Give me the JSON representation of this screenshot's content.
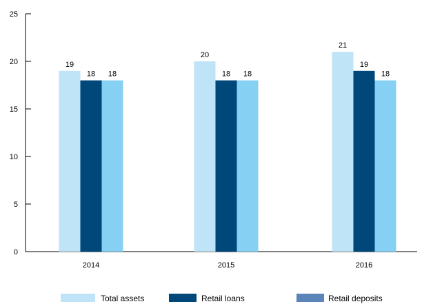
{
  "chart_data": {
    "type": "bar",
    "categories": [
      "2014",
      "2015",
      "2016"
    ],
    "series": [
      {
        "name": "Total assets",
        "values": [
          19,
          20,
          21
        ],
        "color": "#bfe3f7"
      },
      {
        "name": "Retail loans",
        "values": [
          18,
          18,
          19
        ],
        "color": "#00477a"
      },
      {
        "name": "Retail deposits",
        "values": [
          18,
          18,
          18
        ],
        "color": "#85d0f3",
        "legend_color": "#5b85b8"
      }
    ],
    "data_labels": [
      [
        "19",
        "18",
        "18"
      ],
      [
        "20",
        "18",
        "18"
      ],
      [
        "21",
        "19",
        "18"
      ]
    ],
    "yticks": [
      "0",
      "5",
      "10",
      "15",
      "20",
      "25"
    ],
    "ylim": [
      0,
      25
    ],
    "grid": false,
    "legend_position": "bottom"
  }
}
